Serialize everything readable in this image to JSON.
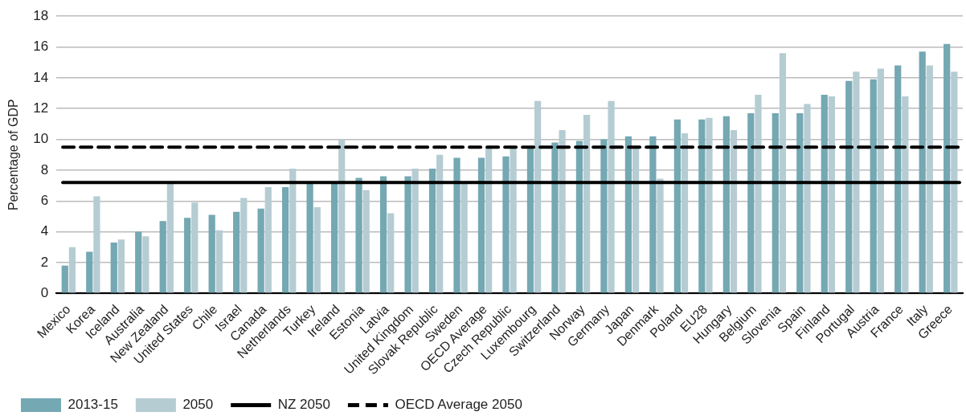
{
  "chart_data": {
    "type": "bar",
    "ylabel": "Percentage of GDP",
    "categories": [
      "Mexico",
      "Korea",
      "Iceland",
      "Australia",
      "New Zealand",
      "United States",
      "Chile",
      "Israel",
      "Canada",
      "Netherlands",
      "Turkey",
      "Ireland",
      "Estonia",
      "Latvia",
      "United Kingdom",
      "Slovak Republic",
      "Sweden",
      "OECD Average",
      "Czech Republic",
      "Luxembourg",
      "Switzerland",
      "Norway",
      "Germany",
      "Japan",
      "Denmark",
      "Poland",
      "EU28",
      "Hungary",
      "Belgium",
      "Slovenia",
      "Spain",
      "Finland",
      "Portugal",
      "Austria",
      "France",
      "Italy",
      "Greece"
    ],
    "series": [
      {
        "name": "2013-15",
        "color": "#74a8b2",
        "values": [
          1.8,
          2.7,
          3.3,
          4.0,
          4.7,
          4.9,
          5.1,
          5.3,
          5.5,
          6.9,
          7.2,
          7.2,
          7.5,
          7.6,
          7.6,
          8.1,
          8.8,
          8.8,
          8.9,
          9.5,
          9.8,
          9.9,
          10.0,
          10.2,
          10.2,
          11.3,
          11.3,
          11.5,
          11.7,
          11.7,
          11.7,
          12.9,
          13.8,
          13.9,
          14.8,
          15.7,
          16.2
        ]
      },
      {
        "name": "2050",
        "color": "#b5ccd3",
        "values": [
          3.0,
          6.3,
          3.5,
          3.7,
          7.2,
          5.9,
          4.1,
          6.2,
          6.9,
          8.1,
          5.6,
          10.0,
          6.7,
          5.2,
          8.1,
          9.0,
          7.2,
          9.5,
          9.5,
          12.5,
          10.6,
          11.6,
          12.5,
          9.5,
          7.45,
          10.4,
          11.4,
          10.6,
          12.9,
          15.6,
          12.3,
          12.8,
          14.4,
          14.6,
          12.8,
          14.8,
          14.4
        ]
      }
    ],
    "ylim": [
      0,
      18
    ],
    "yticks": [
      0,
      2,
      4,
      6,
      8,
      10,
      12,
      14,
      16,
      18
    ],
    "grid": "y",
    "legend": "bottom left",
    "ref_lines": [
      {
        "axis": "y",
        "value": 7.2,
        "label": "NZ 2050",
        "color": "#000000",
        "line_style": "solid"
      },
      {
        "axis": "y",
        "value": 9.5,
        "label": "OECD Average 2050",
        "color": "#000000",
        "line_style": "dashed"
      }
    ]
  }
}
